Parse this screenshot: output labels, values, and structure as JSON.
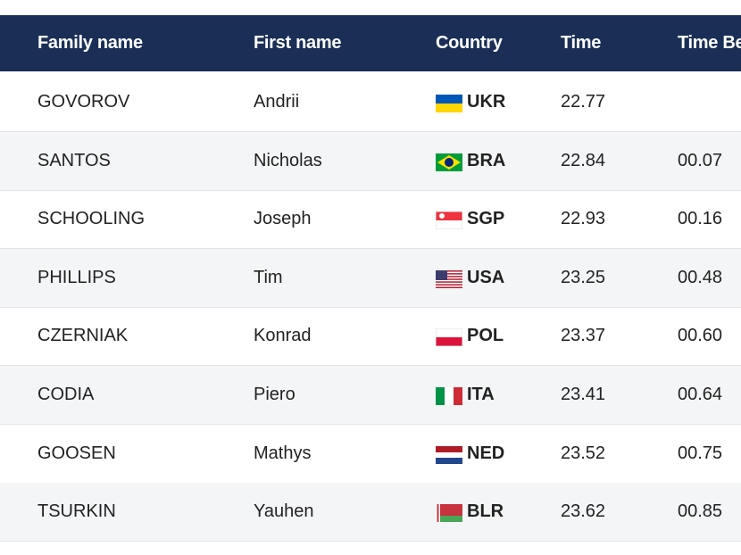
{
  "table": {
    "headers": [
      "Family name",
      "First name",
      "Country",
      "Time",
      "Time Be"
    ],
    "rows": [
      {
        "family": "GOVOROV",
        "first": "Andrii",
        "country": "UKR",
        "time": "22.77"
      },
      {
        "family": "SANTOS",
        "first": "Nicholas",
        "country": "BRA",
        "time": "22.84",
        "behind": "00.07"
      },
      {
        "family": "SCHOOLING",
        "first": "Joseph",
        "country": "SGP",
        "time": "22.93",
        "behind": "00.16"
      },
      {
        "family": "PHILLIPS",
        "first": "Tim",
        "country": "USA",
        "time": "23.25",
        "behind": "00.48"
      },
      {
        "family": "CZERNIAK",
        "first": "Konrad",
        "country": "POL",
        "time": "23.37",
        "behind": "00.60"
      },
      {
        "family": "CODIA",
        "first": "Piero",
        "country": "ITA",
        "time": "23.41",
        "behind": "00.64"
      },
      {
        "family": "GOOSEN",
        "first": "Mathys",
        "country": "NED",
        "time": "23.52",
        "behind": "00.75"
      },
      {
        "family": "TSURKIN",
        "first": "Yauhen",
        "country": "BLR",
        "time": "23.62",
        "behind": "00.85"
      }
    ]
  }
}
